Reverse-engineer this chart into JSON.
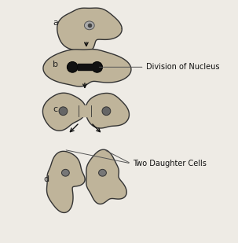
{
  "bg_color": "#eeebe5",
  "cell_fill": "#bfb49a",
  "cell_edge": "#333333",
  "nucleus_dark": "#111111",
  "nucleus_gray": "#888888",
  "arrow_color": "#111111",
  "line_color": "#555555",
  "label_a": "a",
  "label_b": "b",
  "label_c": "c",
  "label_d": "d",
  "annotation1": "Division of Nucleus",
  "annotation2": "Two Daughter Cells",
  "label_fontsize": 8,
  "annotation_fontsize": 7,
  "figsize": [
    3.03,
    3.09
  ],
  "dpi": 100
}
